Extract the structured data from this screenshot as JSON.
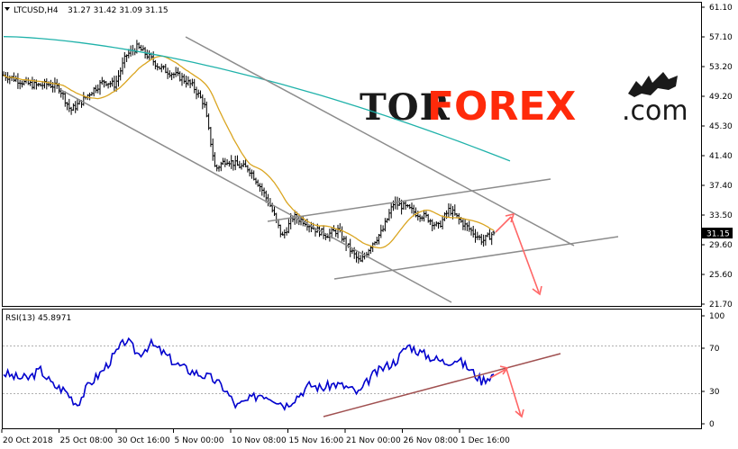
{
  "header": {
    "title": "LTCUSD,H4",
    "ohlc": "31.27 31.42 31.09 31.15",
    "rsi_label": "RSI(13) 45.8971"
  },
  "logo": {
    "part1": "TOR",
    "part2": "FOREX",
    "part3": ".com"
  },
  "price_axis": {
    "labels": [
      "61.10",
      "57.10",
      "53.20",
      "49.20",
      "45.30",
      "41.40",
      "37.40",
      "33.50",
      "29.60",
      "25.60",
      "21.70"
    ],
    "current_price": "31.15"
  },
  "rsi_axis": {
    "labels": [
      "100",
      "70",
      "30",
      "0"
    ]
  },
  "time_axis": {
    "labels": [
      "20 Oct 2018",
      "25 Oct 08:00",
      "30 Oct 16:00",
      "5 Nov 00:00",
      "10 Nov 08:00",
      "15 Nov 16:00",
      "21 Nov 00:00",
      "26 Nov 08:00",
      "1 Dec 16:00"
    ]
  },
  "colors": {
    "candles": "#000000",
    "ma_fast": "#daa520",
    "ma_slow": "#20b2aa",
    "channel": "#8c8c8c",
    "rsi": "#0000cd",
    "rsi_trend": "#a05050",
    "forecast": "#ff6666"
  },
  "chart_data": [
    {
      "type": "candlestick",
      "title": "LTCUSD,H4",
      "x": [
        "20 Oct 2018",
        "25 Oct 08:00",
        "30 Oct 16:00",
        "5 Nov 00:00",
        "10 Nov 08:00",
        "15 Nov 16:00",
        "21 Nov 00:00",
        "26 Nov 08:00",
        "1 Dec 16:00"
      ],
      "close_path": [
        52.1,
        51.6,
        51.0,
        50.7,
        50.9,
        50.4,
        47.4,
        48.6,
        50.1,
        51.3,
        50.8,
        54.7,
        55.8,
        54.6,
        53.1,
        52.4,
        51.7,
        50.6,
        48.3,
        39.6,
        40.9,
        40.1,
        39.7,
        37.4,
        34.6,
        30.6,
        33.3,
        32.7,
        31.6,
        30.9,
        31.5,
        29.1,
        27.2,
        29.6,
        31.4,
        35.1,
        34.6,
        33.8,
        33.2,
        31.9,
        34.3,
        32.7,
        31.4,
        30.1,
        31.15
      ],
      "last_ohlc": {
        "open": 31.27,
        "high": 31.42,
        "low": 31.09,
        "close": 31.15
      },
      "ylim": [
        21.7,
        61.1
      ],
      "indicators": [
        "moving average (fast)",
        "moving average (slow)",
        "descending channel",
        "rising channel"
      ],
      "forecast": "up to about 33.5, then down toward 23"
    },
    {
      "type": "line",
      "title": "RSI(13) 45.8971",
      "values": [
        47,
        43,
        42,
        50,
        36,
        31,
        18,
        37,
        48,
        63,
        78,
        64,
        74,
        66,
        56,
        50,
        46,
        42,
        33,
        16,
        22,
        28,
        24,
        17,
        26,
        36,
        33,
        37,
        34,
        28,
        44,
        52,
        58,
        73,
        66,
        61,
        57,
        60,
        51,
        40,
        46
      ],
      "last_value": 45.8971,
      "ylim": [
        0,
        100
      ],
      "yticks": [
        0,
        30,
        70,
        100
      ],
      "forecast": "down toward 5"
    }
  ]
}
